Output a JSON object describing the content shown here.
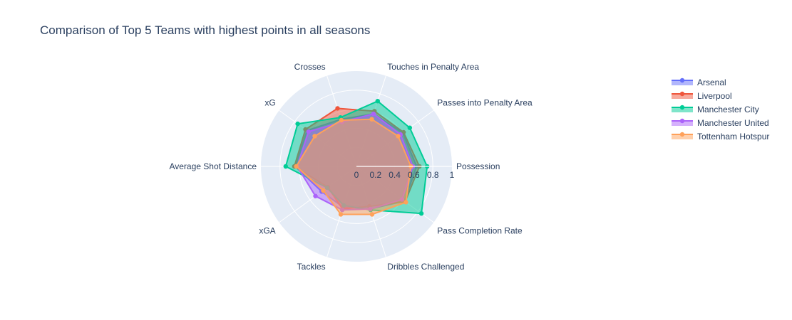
{
  "chart_data": {
    "type": "radar",
    "title": "Comparison of Top 5 Teams with highest points in all seasons",
    "categories": [
      "Possession",
      "Passes into Penalty Area",
      "Touches in Penalty Area",
      "Crosses",
      "xG",
      "Average Shot Distance",
      "xGA",
      "Tackles",
      "Dribbles Challenged",
      "Pass Completion Rate"
    ],
    "radial_ticks": [
      "0",
      "0.2",
      "0.4",
      "0.6",
      "0.8",
      "1"
    ],
    "radial_range": [
      0,
      1
    ],
    "series": [
      {
        "name": "Arsenal",
        "color": "#636efa",
        "values": [
          0.63,
          0.6,
          0.58,
          0.52,
          0.64,
          0.64,
          0.45,
          0.45,
          0.47,
          0.62
        ]
      },
      {
        "name": "Liverpool",
        "color": "#ef553b",
        "values": [
          0.66,
          0.61,
          0.61,
          0.64,
          0.66,
          0.65,
          0.37,
          0.47,
          0.44,
          0.63
        ]
      },
      {
        "name": "Manchester City",
        "color": "#00cc96",
        "values": [
          0.74,
          0.69,
          0.72,
          0.54,
          0.76,
          0.74,
          0.38,
          0.43,
          0.48,
          0.84
        ]
      },
      {
        "name": "Manchester United",
        "color": "#ab63fa",
        "values": [
          0.59,
          0.57,
          0.58,
          0.49,
          0.62,
          0.62,
          0.53,
          0.48,
          0.47,
          0.59
        ]
      },
      {
        "name": "Tottenham Hotspur",
        "color": "#ffa15a",
        "values": [
          0.57,
          0.54,
          0.52,
          0.51,
          0.54,
          0.63,
          0.43,
          0.53,
          0.53,
          0.64
        ]
      }
    ]
  }
}
